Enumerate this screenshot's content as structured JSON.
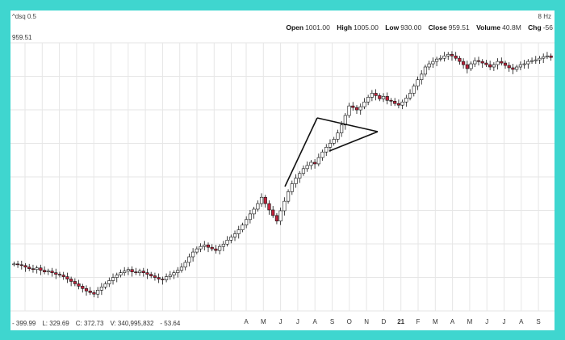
{
  "header": {
    "ticker": "^dsq 0.5",
    "corner_label": "8 Hz",
    "open_label": "Open",
    "open_value": "1001.00",
    "high_label": "High",
    "high_value": "1005.00",
    "low_label": "Low",
    "low_value": "930.00",
    "close_label": "Close",
    "close_value": "959.51",
    "volume_label": "Volume",
    "volume_value": "40.8M",
    "chg_label": "Chg",
    "chg_value": "-56",
    "last_price": "959.51"
  },
  "footer": {
    "stats": [
      "- 399.99",
      "L: 329.69",
      "C: 372.73",
      "V: 340,995,832",
      "- 53.64"
    ]
  },
  "chart_data": {
    "type": "candlestick",
    "title": "",
    "xlabel": "",
    "ylabel": "",
    "x_ticks": [
      "A",
      "M",
      "J",
      "J",
      "A",
      "S",
      "O",
      "N",
      "D",
      "21",
      "F",
      "M",
      "A",
      "M",
      "J",
      "J",
      "A",
      "S"
    ],
    "ylim": [
      329.69,
      1005
    ],
    "grid": true,
    "annotations": [
      {
        "type": "flagpole",
        "label": ""
      },
      {
        "type": "pennant",
        "label": ""
      }
    ],
    "colors": {
      "up": "#ffffff",
      "down": "#c0223b",
      "grid": "#e6e6e6",
      "pattern": "#111111"
    },
    "series_close": [
      448,
      446,
      444,
      440,
      436,
      434,
      438,
      432,
      428,
      430,
      426,
      422,
      420,
      416,
      410,
      404,
      398,
      392,
      386,
      380,
      376,
      372,
      382,
      390,
      398,
      406,
      414,
      420,
      426,
      430,
      434,
      428,
      426,
      430,
      426,
      422,
      418,
      414,
      410,
      408,
      416,
      420,
      426,
      432,
      440,
      452,
      466,
      478,
      486,
      492,
      496,
      490,
      486,
      482,
      492,
      498,
      508,
      516,
      524,
      534,
      546,
      560,
      574,
      586,
      600,
      616,
      600,
      584,
      570,
      556,
      582,
      606,
      630,
      650,
      664,
      676,
      688,
      696,
      704,
      700,
      716,
      730,
      742,
      752,
      762,
      778,
      798,
      822,
      846,
      842,
      836,
      844,
      856,
      868,
      878,
      872,
      864,
      870,
      860,
      858,
      852,
      848,
      856,
      866,
      878,
      896,
      912,
      926,
      944,
      952,
      958,
      964,
      966,
      972,
      976,
      972,
      966,
      958,
      950,
      940,
      952,
      960,
      958,
      954,
      950,
      944,
      950,
      958,
      954,
      948,
      942,
      938,
      944,
      950,
      952,
      958,
      960,
      962,
      966,
      970,
      972,
      968
    ]
  }
}
